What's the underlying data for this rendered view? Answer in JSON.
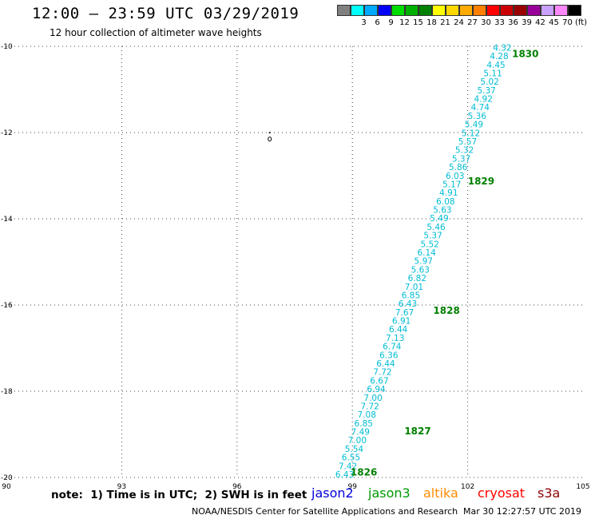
{
  "header": {
    "title": "12:00 — 23:59 UTC 03/29/2019",
    "subtitle": "12 hour collection of altimeter wave heights"
  },
  "colorbar": {
    "swatches": [
      {
        "color": "#808080",
        "label": ""
      },
      {
        "color": "#00ffff",
        "label": "3"
      },
      {
        "color": "#00aaff",
        "label": "6"
      },
      {
        "color": "#0000ff",
        "label": "9"
      },
      {
        "color": "#00dd00",
        "label": "12"
      },
      {
        "color": "#00b000",
        "label": "15"
      },
      {
        "color": "#008000",
        "label": "18"
      },
      {
        "color": "#ffff00",
        "label": "21"
      },
      {
        "color": "#ffd700",
        "label": "24"
      },
      {
        "color": "#ffaa00",
        "label": "27"
      },
      {
        "color": "#ff8000",
        "label": "30"
      },
      {
        "color": "#ff0000",
        "label": "33"
      },
      {
        "color": "#cc0000",
        "label": "36"
      },
      {
        "color": "#990000",
        "label": "39"
      },
      {
        "color": "#990099",
        "label": "42"
      },
      {
        "color": "#c8a0ff",
        "label": "45"
      },
      {
        "color": "#ff88ff",
        "label": "70"
      },
      {
        "color": "#000000",
        "label": "(ft)"
      }
    ]
  },
  "map": {
    "lon_range": [
      90,
      105
    ],
    "lat_range": [
      -20,
      -10
    ],
    "x_ticks": [
      "90",
      "93",
      "96",
      "99",
      "102",
      "105"
    ],
    "x_tick_values": [
      90,
      93,
      96,
      99,
      102,
      105
    ],
    "y_ticks": [
      "-10",
      "-12",
      "-14",
      "-16",
      "-18",
      "-20"
    ],
    "y_tick_values": [
      -10,
      -12,
      -14,
      -16,
      -18,
      -20
    ],
    "grid": "dotted",
    "track_color": "#00bcd4",
    "time_label_color": "#008000",
    "track_start": {
      "lon": 98.8,
      "lat": -20.0
    },
    "track_end": {
      "lon": 102.9,
      "lat": -10.1
    },
    "swh_values": [
      "6.43",
      "7.42",
      "6.55",
      "5.54",
      "7.00",
      "7.49",
      "6.85",
      "7.08",
      "7.72",
      "7.00",
      "6.94",
      "6.67",
      "7.72",
      "6.44",
      "6.36",
      "6.74",
      "7.13",
      "6.44",
      "6.91",
      "7.67",
      "6.43",
      "6.85",
      "7.01",
      "6.82",
      "5.63",
      "5.97",
      "6.14",
      "5.52",
      "5.37",
      "5.46",
      "5.49",
      "5.63",
      "6.08",
      "4.91",
      "5.17",
      "6.03",
      "5.86",
      "5.37",
      "5.32",
      "5.57",
      "5.12",
      "5.49",
      "5.36",
      "4.74",
      "4.92",
      "5.37",
      "5.02",
      "5.11",
      "4.45",
      "4.28",
      "4.32"
    ],
    "time_labels": [
      {
        "text": "1826",
        "lon": 99.3,
        "lat": -19.95
      },
      {
        "text": "1827",
        "lon": 100.7,
        "lat": -19.0
      },
      {
        "text": "1828",
        "lon": 101.45,
        "lat": -16.2
      },
      {
        "text": "1829",
        "lon": 102.35,
        "lat": -13.2
      },
      {
        "text": "1830",
        "lon": 103.5,
        "lat": -10.25
      }
    ],
    "island_marker": {
      "lon": 96.85,
      "lat": -12.15
    }
  },
  "footer": {
    "note": "note:  1) Time is in UTC;  2) SWH is in feet",
    "satellites": [
      {
        "name": "jason2",
        "color": "#0000dd"
      },
      {
        "name": "jason3",
        "color": "#009900"
      },
      {
        "name": "altika",
        "color": "#ff8c00"
      },
      {
        "name": "cryosat",
        "color": "#ff0000"
      },
      {
        "name": "s3a",
        "color": "#8b0000"
      }
    ],
    "credit": "NOAA/NESDIS Center for Satellite Applications and Research",
    "timestamp": "Mar 30 12:27:57 UTC 2019"
  }
}
